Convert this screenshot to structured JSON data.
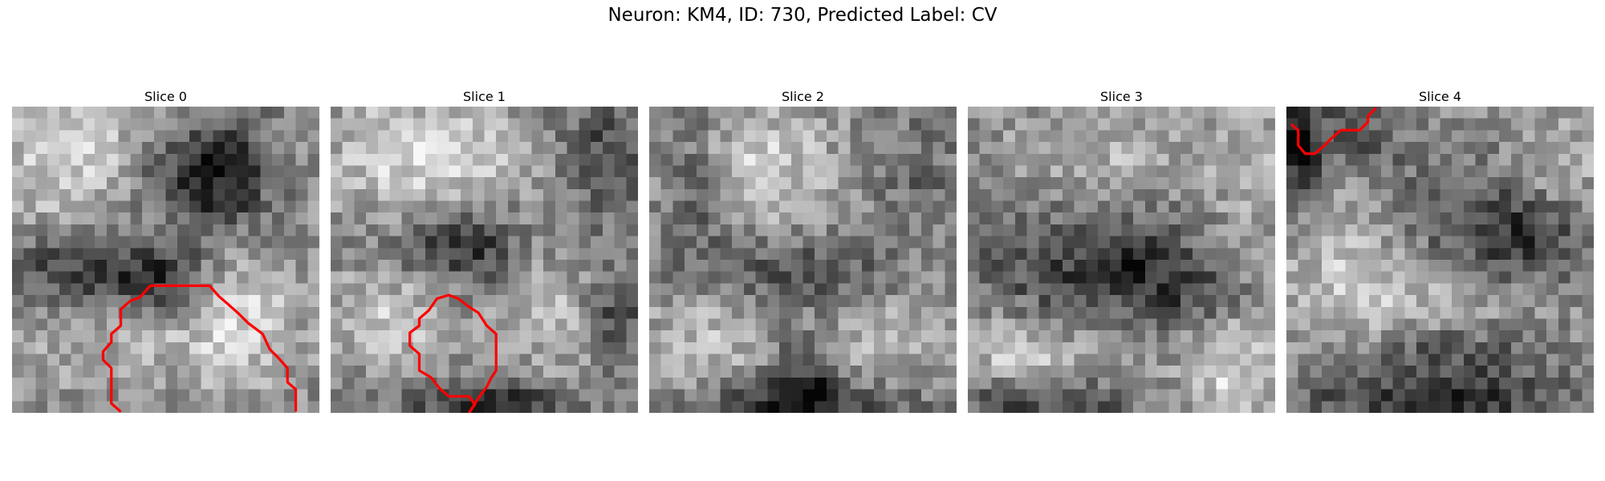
{
  "figure": {
    "title": "Neuron: KM4, ID: 730, Predicted Label: CV"
  },
  "slices": [
    {
      "title": "Slice 0",
      "has_contour": true
    },
    {
      "title": "Slice 1",
      "has_contour": true
    },
    {
      "title": "Slice 2",
      "has_contour": false
    },
    {
      "title": "Slice 3",
      "has_contour": false
    },
    {
      "title": "Slice 4",
      "has_contour": true
    }
  ],
  "colors": {
    "contour": "#ff0000",
    "background": "#ffffff"
  },
  "grid": {
    "rows": 26,
    "cols": 26,
    "colormap": "gray"
  }
}
